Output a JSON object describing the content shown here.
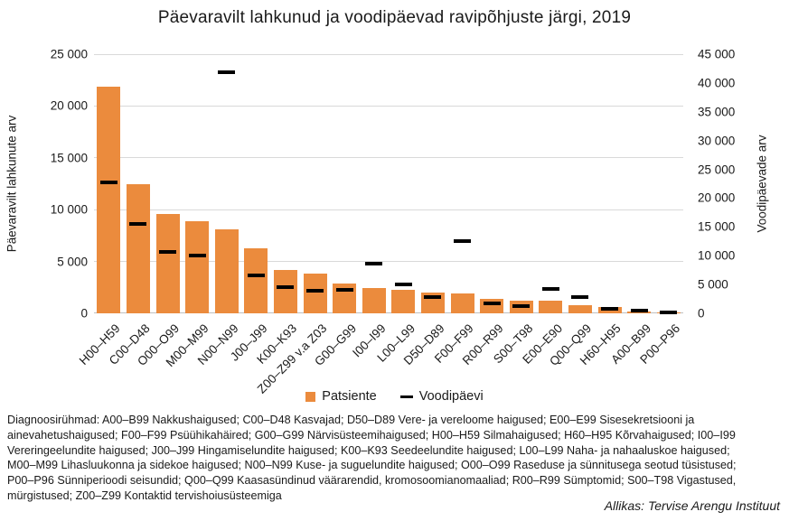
{
  "title": "Päevaravilt lahkunud ja voodipäevad ravipõhjuste järgi, 2019",
  "chart_data": {
    "type": "bar",
    "title": "Päevaravilt lahkunud ja voodipäevad ravipõhjuste järgi, 2019",
    "categories": [
      "H00–H59",
      "C00–D48",
      "O00–O99",
      "M00–M99",
      "N00–N99",
      "J00–J99",
      "K00–K93",
      "Z00–Z99 v.a Z03",
      "G00–G99",
      "I00–I99",
      "L00–L99",
      "D50–D89",
      "F00–F99",
      "R00–R99",
      "S00–T98",
      "E00–E90",
      "Q00–Q99",
      "H60–H95",
      "A00–B99",
      "P00–P96"
    ],
    "series": [
      {
        "name": "Patsiente",
        "type": "bar",
        "axis": "left",
        "color": "#EB8B3D",
        "values": [
          21900,
          12500,
          9600,
          8900,
          8100,
          6300,
          4200,
          3800,
          2900,
          2400,
          2250,
          2000,
          1950,
          1400,
          1200,
          1250,
          750,
          580,
          170,
          120
        ]
      },
      {
        "name": "Voodipäevi",
        "type": "dash",
        "axis": "right",
        "color": "#000000",
        "values": [
          22700,
          15600,
          10700,
          10000,
          41900,
          6600,
          4500,
          4000,
          4100,
          8600,
          5000,
          2800,
          12500,
          1800,
          1300,
          4300,
          2800,
          800,
          470,
          200
        ]
      }
    ],
    "left_axis": {
      "label": "Päevaravilt lahkunute arv",
      "min": 0,
      "max": 25000,
      "step": 5000,
      "ticks": [
        "0",
        "5 000",
        "10 000",
        "15 000",
        "20 000",
        "25 000"
      ]
    },
    "right_axis": {
      "label": "Voodipäevade arv",
      "min": 0,
      "max": 45000,
      "step": 5000,
      "ticks": [
        "0",
        "5 000",
        "10 000",
        "15 000",
        "20 000",
        "25 000",
        "30 000",
        "35 000",
        "40 000",
        "45 000"
      ]
    },
    "grid": true,
    "legend_position": "bottom"
  },
  "legend": {
    "patients_label": "Patsiente",
    "beddays_label": "Voodipäevi"
  },
  "footnote_lines": [
    "Diagnoosirühmad: A00–B99 Nakkushaigused; C00–D48 Kasvajad; D50–D89 Vere- ja vereloome haigused; E00–E99 Sisesekretsiooni ja",
    "ainevahetushaigused; F00–F99 Psüühikahäired; G00–G99 Närvisüsteemihaigused; H00–H59 Silmahaigused; H60–H95 Kõrvahaigused; I00–I99",
    "Vereringeelundite haigused; J00–J99 Hingamiselundite haigused; K00–K93 Seedeelundite haigused; L00–L99 Naha- ja nahaaluskoe haigused;",
    "M00–M99 Lihasluukonna ja sidekoe haigused; N00–N99 Kuse- ja suguelundite haigused; O00–O99 Raseduse ja sünnitusega seotud tüsistused;",
    "P00–P96 Sünniperioodi seisundid; Q00–Q99 Kaasasündinud väärarendid, kromosoomianomaaliad; R00–R99 Sümptomid; S00–T98 Vigastused,",
    "mürgistused; Z00–Z99 Kontaktid tervishoiusüsteemiga"
  ],
  "source": "Allikas: Tervise Arengu Instituut",
  "colors": {
    "bar": "#EB8B3D",
    "dash": "#000000",
    "grid": "#d9d9d9",
    "axis_line": "#bfbfbf",
    "text": "#1a1a1a"
  }
}
